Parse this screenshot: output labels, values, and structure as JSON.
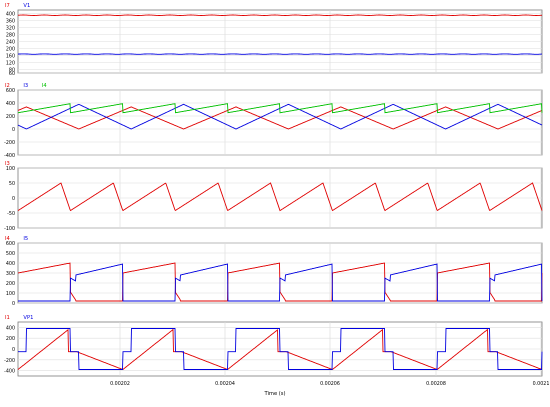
{
  "colors": {
    "red": "#e00000",
    "blue": "#0000e0",
    "green": "#00c000",
    "grid": "#dddddd",
    "frame": "#7a7a7a",
    "text": "#000000"
  },
  "chart_data": [
    {
      "type": "line",
      "legend": [
        {
          "name": "I7",
          "color": "#e00000"
        },
        {
          "name": "V1",
          "color": "#0000e0"
        }
      ],
      "ylim": [
        60,
        420
      ],
      "yticks": [
        "400",
        "360",
        "320",
        "280",
        "240",
        "200",
        "160",
        "120",
        "80",
        "60"
      ],
      "series": [
        {
          "name": "I7",
          "color": "#e00000",
          "shape": "flat",
          "level": 390
        },
        {
          "name": "V1",
          "color": "#0000e0",
          "shape": "flat",
          "level": 168
        }
      ]
    },
    {
      "type": "line",
      "legend": [
        {
          "name": "I2",
          "color": "#e00000"
        },
        {
          "name": "I3",
          "color": "#0000e0"
        },
        {
          "name": "I4",
          "color": "#00c000"
        }
      ],
      "ylim": [
        -400,
        600
      ],
      "yticks": [
        "600",
        "400",
        "200",
        "0",
        "-200",
        "-400"
      ],
      "series": [
        {
          "name": "I2",
          "color": "#e00000",
          "shape": "triangle",
          "min": 0,
          "max": 340,
          "phase": 0.42
        },
        {
          "name": "I3",
          "color": "#0000e0",
          "shape": "triangle",
          "min": 0,
          "max": 380,
          "phase": 0.92
        },
        {
          "name": "I4",
          "color": "#00c000",
          "shape": "sawup",
          "min": 250,
          "max": 390,
          "phase": 0.0
        }
      ]
    },
    {
      "type": "line",
      "legend": [
        {
          "name": "I3",
          "color": "#e00000"
        }
      ],
      "ylim": [
        -100,
        100
      ],
      "yticks": [
        "100",
        "50",
        "0",
        "-50",
        "-100"
      ],
      "series": [
        {
          "name": "I3",
          "color": "#e00000",
          "shape": "sawtooth",
          "min": -42,
          "max": 50
        }
      ]
    },
    {
      "type": "line",
      "legend": [
        {
          "name": "I4",
          "color": "#e00000"
        },
        {
          "name": "I5",
          "color": "#0000e0"
        }
      ],
      "ylim": [
        0,
        600
      ],
      "yticks": [
        "600",
        "500",
        "400",
        "300",
        "200",
        "100",
        "0"
      ],
      "series": [
        {
          "name": "I4",
          "color": "#e00000",
          "shape": "pulseA",
          "low": 20,
          "high": 400
        },
        {
          "name": "I5",
          "color": "#0000e0",
          "shape": "pulseB",
          "low": 20,
          "high": 400
        }
      ]
    },
    {
      "type": "line",
      "legend": [
        {
          "name": "I1",
          "color": "#e00000"
        },
        {
          "name": "VP1",
          "color": "#0000e0"
        }
      ],
      "ylim": [
        -500,
        500
      ],
      "yticks": [
        "400",
        "200",
        "0",
        "-200",
        "-400"
      ],
      "series": [
        {
          "name": "I1",
          "color": "#e00000",
          "shape": "triSaw",
          "min": -380,
          "max": 380
        },
        {
          "name": "VP1",
          "color": "#0000e0",
          "shape": "square",
          "min": -380,
          "max": 380
        }
      ]
    }
  ],
  "xaxis": {
    "label": "Time (s)",
    "ticks": [
      "0.00202",
      "0.00204",
      "0.00206",
      "0.00208",
      "0.0021"
    ]
  }
}
